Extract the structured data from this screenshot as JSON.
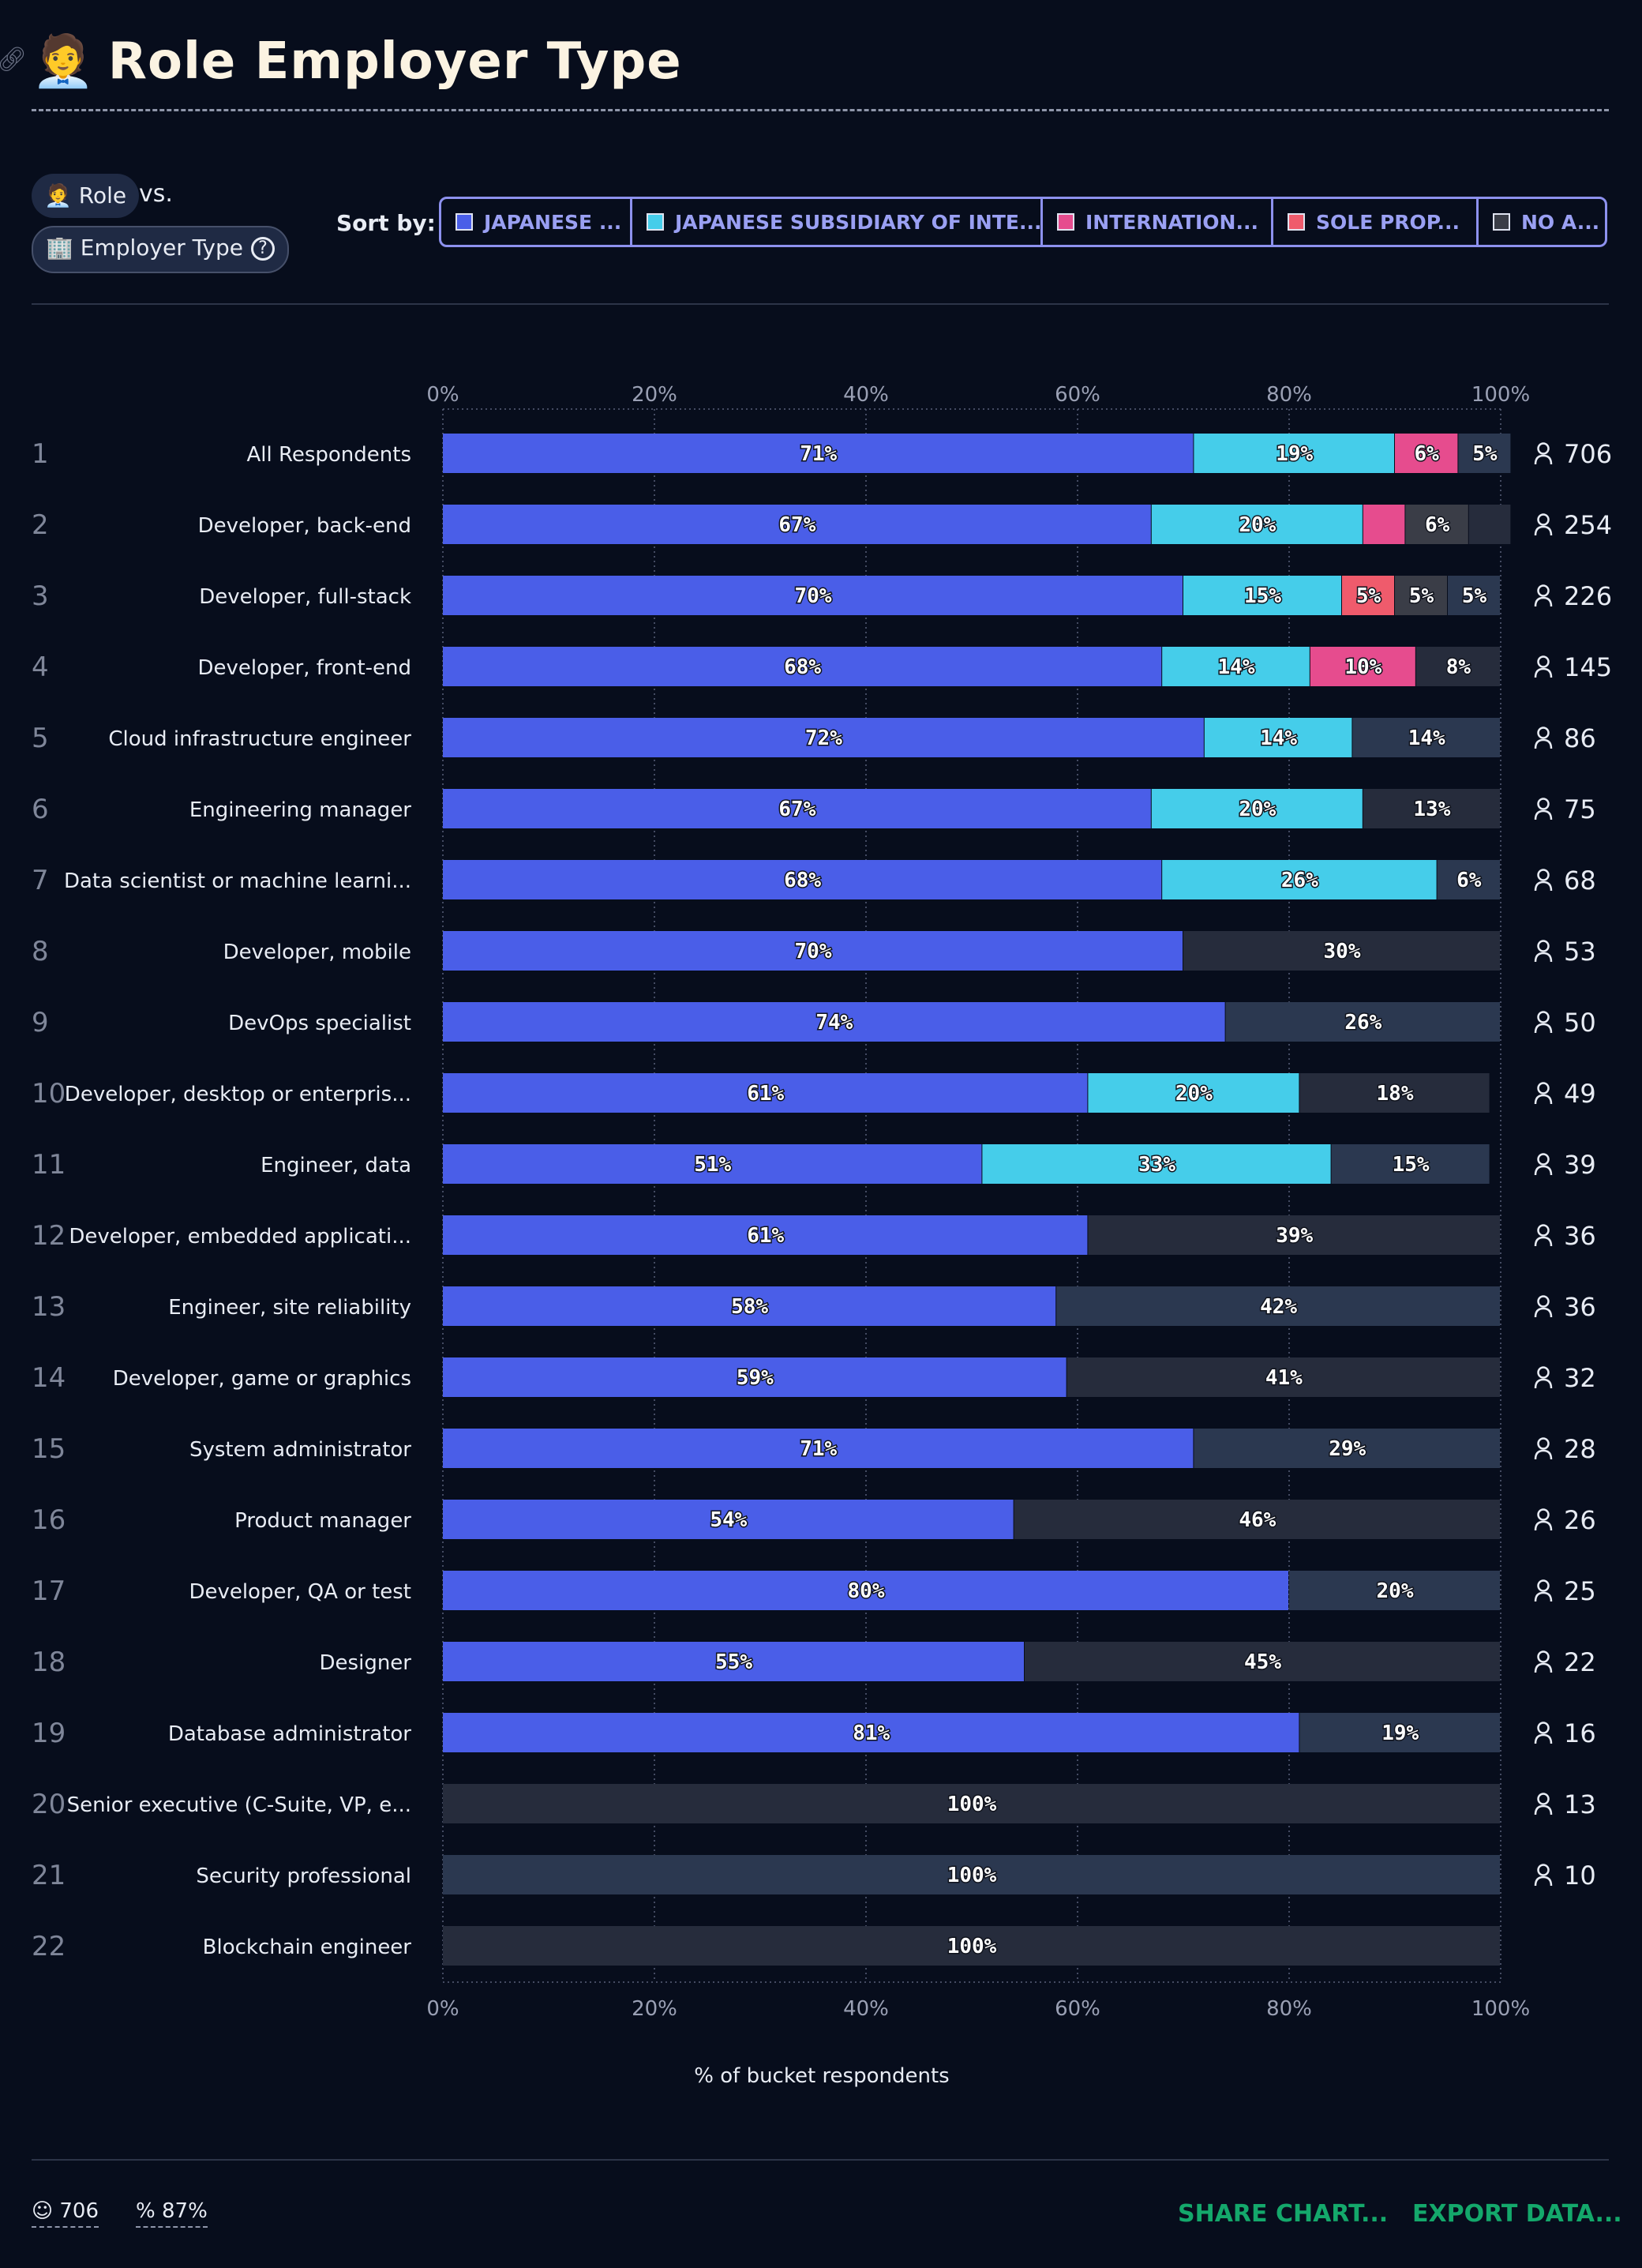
{
  "header": {
    "title": "Role Employer Type",
    "emoji": "🧑‍💼",
    "link_icon": "link-icon"
  },
  "controls": {
    "role_pill": "Role",
    "role_emoji": "🧑‍💼",
    "vs": "vs.",
    "employer_pill": "Employer Type",
    "employer_emoji": "🏢",
    "sort_label": "Sort by:",
    "sort_tabs": [
      {
        "label": "JAPANESE ...",
        "color": "#4a5ee8"
      },
      {
        "label": "JAPANESE SUBSIDIARY OF INTE...",
        "color": "#45cdea"
      },
      {
        "label": "INTERNATION...",
        "color": "#e64c8e"
      },
      {
        "label": "SOLE PROP...",
        "color": "#ef5b6c"
      },
      {
        "label": "NO A...",
        "color": "#3a3d47"
      }
    ]
  },
  "chart_data": {
    "type": "bar",
    "orientation": "horizontal",
    "stacked": true,
    "xlabel": "% of bucket respondents",
    "xlim": [
      0,
      100
    ],
    "xticks": [
      "0%",
      "20%",
      "40%",
      "60%",
      "80%",
      "100%"
    ],
    "colors": {
      "japanese": "#4a5ee8",
      "subsidiary": "#45cdea",
      "international": "#e64c8e",
      "sole": "#ef5b6c",
      "other": "#3a3d47",
      "remainder_a": "#262c3c",
      "remainder_b": "#2b3850"
    },
    "rows": [
      {
        "rank": "1",
        "label": "All Respondents",
        "count": "706",
        "segments": [
          {
            "k": "japanese",
            "v": 71,
            "t": "71%"
          },
          {
            "k": "subsidiary",
            "v": 19,
            "t": "19%"
          },
          {
            "k": "international",
            "v": 6,
            "t": "6%"
          },
          {
            "k": "remainder_b",
            "v": 5,
            "t": "5%"
          }
        ]
      },
      {
        "rank": "2",
        "label": "Developer, back-end",
        "count": "254",
        "segments": [
          {
            "k": "japanese",
            "v": 67,
            "t": "67%"
          },
          {
            "k": "subsidiary",
            "v": 20,
            "t": "20%"
          },
          {
            "k": "international",
            "v": 4,
            "t": ""
          },
          {
            "k": "other",
            "v": 6,
            "t": "6%"
          },
          {
            "k": "remainder_a",
            "v": 4,
            "t": ""
          }
        ]
      },
      {
        "rank": "3",
        "label": "Developer, full-stack",
        "count": "226",
        "segments": [
          {
            "k": "japanese",
            "v": 70,
            "t": "70%"
          },
          {
            "k": "subsidiary",
            "v": 15,
            "t": "15%"
          },
          {
            "k": "sole",
            "v": 5,
            "t": "5%"
          },
          {
            "k": "other",
            "v": 5,
            "t": "5%"
          },
          {
            "k": "remainder_b",
            "v": 5,
            "t": "5%"
          }
        ]
      },
      {
        "rank": "4",
        "label": "Developer, front-end",
        "count": "145",
        "segments": [
          {
            "k": "japanese",
            "v": 68,
            "t": "68%"
          },
          {
            "k": "subsidiary",
            "v": 14,
            "t": "14%"
          },
          {
            "k": "international",
            "v": 10,
            "t": "10%"
          },
          {
            "k": "remainder_a",
            "v": 8,
            "t": "8%"
          }
        ]
      },
      {
        "rank": "5",
        "label": "Cloud infrastructure engineer",
        "count": "86",
        "segments": [
          {
            "k": "japanese",
            "v": 72,
            "t": "72%"
          },
          {
            "k": "subsidiary",
            "v": 14,
            "t": "14%"
          },
          {
            "k": "remainder_b",
            "v": 14,
            "t": "14%"
          }
        ]
      },
      {
        "rank": "6",
        "label": "Engineering manager",
        "count": "75",
        "segments": [
          {
            "k": "japanese",
            "v": 67,
            "t": "67%"
          },
          {
            "k": "subsidiary",
            "v": 20,
            "t": "20%"
          },
          {
            "k": "remainder_a",
            "v": 13,
            "t": "13%"
          }
        ]
      },
      {
        "rank": "7",
        "label": "Data scientist or machine learni...",
        "count": "68",
        "segments": [
          {
            "k": "japanese",
            "v": 68,
            "t": "68%"
          },
          {
            "k": "subsidiary",
            "v": 26,
            "t": "26%"
          },
          {
            "k": "remainder_b",
            "v": 6,
            "t": "6%"
          }
        ]
      },
      {
        "rank": "8",
        "label": "Developer, mobile",
        "count": "53",
        "segments": [
          {
            "k": "japanese",
            "v": 70,
            "t": "70%"
          },
          {
            "k": "remainder_a",
            "v": 30,
            "t": "30%"
          }
        ]
      },
      {
        "rank": "9",
        "label": "DevOps specialist",
        "count": "50",
        "segments": [
          {
            "k": "japanese",
            "v": 74,
            "t": "74%"
          },
          {
            "k": "remainder_b",
            "v": 26,
            "t": "26%"
          }
        ]
      },
      {
        "rank": "10",
        "label": "Developer, desktop or enterpris...",
        "count": "49",
        "segments": [
          {
            "k": "japanese",
            "v": 61,
            "t": "61%"
          },
          {
            "k": "subsidiary",
            "v": 20,
            "t": "20%"
          },
          {
            "k": "remainder_a",
            "v": 18,
            "t": "18%"
          }
        ]
      },
      {
        "rank": "11",
        "label": "Engineer, data",
        "count": "39",
        "segments": [
          {
            "k": "japanese",
            "v": 51,
            "t": "51%"
          },
          {
            "k": "subsidiary",
            "v": 33,
            "t": "33%"
          },
          {
            "k": "remainder_b",
            "v": 15,
            "t": "15%"
          }
        ]
      },
      {
        "rank": "12",
        "label": "Developer, embedded applicati...",
        "count": "36",
        "segments": [
          {
            "k": "japanese",
            "v": 61,
            "t": "61%"
          },
          {
            "k": "remainder_a",
            "v": 39,
            "t": "39%"
          }
        ]
      },
      {
        "rank": "13",
        "label": "Engineer, site reliability",
        "count": "36",
        "segments": [
          {
            "k": "japanese",
            "v": 58,
            "t": "58%"
          },
          {
            "k": "remainder_b",
            "v": 42,
            "t": "42%"
          }
        ]
      },
      {
        "rank": "14",
        "label": "Developer, game or graphics",
        "count": "32",
        "segments": [
          {
            "k": "japanese",
            "v": 59,
            "t": "59%"
          },
          {
            "k": "remainder_a",
            "v": 41,
            "t": "41%"
          }
        ]
      },
      {
        "rank": "15",
        "label": "System administrator",
        "count": "28",
        "segments": [
          {
            "k": "japanese",
            "v": 71,
            "t": "71%"
          },
          {
            "k": "remainder_b",
            "v": 29,
            "t": "29%"
          }
        ]
      },
      {
        "rank": "16",
        "label": "Product manager",
        "count": "26",
        "segments": [
          {
            "k": "japanese",
            "v": 54,
            "t": "54%"
          },
          {
            "k": "remainder_a",
            "v": 46,
            "t": "46%"
          }
        ]
      },
      {
        "rank": "17",
        "label": "Developer, QA or test",
        "count": "25",
        "segments": [
          {
            "k": "japanese",
            "v": 80,
            "t": "80%"
          },
          {
            "k": "remainder_b",
            "v": 20,
            "t": "20%"
          }
        ]
      },
      {
        "rank": "18",
        "label": "Designer",
        "count": "22",
        "segments": [
          {
            "k": "japanese",
            "v": 55,
            "t": "55%"
          },
          {
            "k": "remainder_a",
            "v": 45,
            "t": "45%"
          }
        ]
      },
      {
        "rank": "19",
        "label": "Database administrator",
        "count": "16",
        "segments": [
          {
            "k": "japanese",
            "v": 81,
            "t": "81%"
          },
          {
            "k": "remainder_b",
            "v": 19,
            "t": "19%"
          }
        ]
      },
      {
        "rank": "20",
        "label": "Senior executive (C-Suite, VP, e...",
        "count": "13",
        "segments": [
          {
            "k": "remainder_a",
            "v": 100,
            "t": "100%"
          }
        ]
      },
      {
        "rank": "21",
        "label": "Security professional",
        "count": "10",
        "segments": [
          {
            "k": "remainder_b",
            "v": 100,
            "t": "100%"
          }
        ]
      },
      {
        "rank": "22",
        "label": "Blockchain engineer",
        "count": "",
        "segments": [
          {
            "k": "remainder_a",
            "v": 100,
            "t": "100%"
          }
        ]
      }
    ]
  },
  "footer": {
    "respondents": "706",
    "percent": "87%",
    "share_label": "SHARE CHART...",
    "export_label": "EXPORT DATA..."
  }
}
